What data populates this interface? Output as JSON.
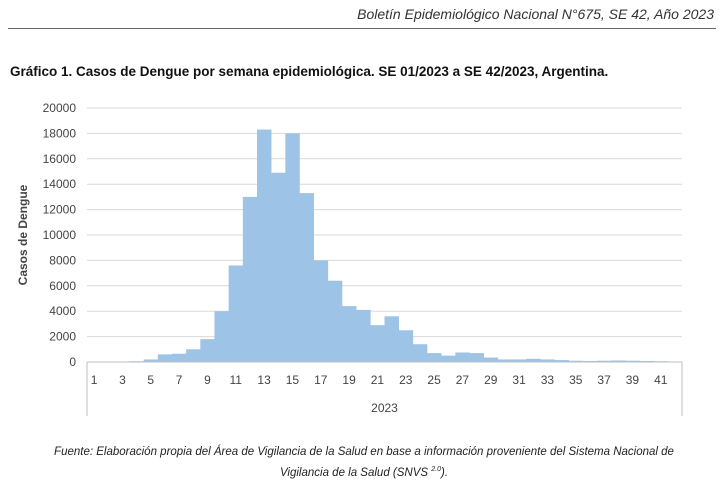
{
  "header": {
    "title": "Boletín Epidemiológico Nacional N°675, SE 42, Año 2023"
  },
  "chart_title": "Gráfico 1. Casos de Dengue por semana epidemiológica. SE 01/2023 a SE 42/2023, Argentina.",
  "footnote": {
    "line1": "Fuente: Elaboración propia del Área de Vigilancia de la Salud en base a información proveniente del Sistema Nacional de",
    "line2_pre": "Vigilancia de la Salud (SNVS ",
    "line2_sup": "2.0",
    "line2_post": ")."
  },
  "chart_data": {
    "type": "bar",
    "ylabel": "Casos de Dengue",
    "xlabel": "2023",
    "ylim": [
      0,
      20000
    ],
    "yticks": [
      0,
      2000,
      4000,
      6000,
      8000,
      10000,
      12000,
      14000,
      16000,
      18000,
      20000
    ],
    "xtick_labels": [
      "1",
      "3",
      "5",
      "7",
      "9",
      "11",
      "13",
      "15",
      "17",
      "19",
      "21",
      "23",
      "25",
      "27",
      "29",
      "31",
      "33",
      "35",
      "37",
      "39",
      "41"
    ],
    "grid": true,
    "bar_color": "#9dc3e6",
    "categories": [
      1,
      2,
      3,
      4,
      5,
      6,
      7,
      8,
      9,
      10,
      11,
      12,
      13,
      14,
      15,
      16,
      17,
      18,
      19,
      20,
      21,
      22,
      23,
      24,
      25,
      26,
      27,
      28,
      29,
      30,
      31,
      32,
      33,
      34,
      35,
      36,
      37,
      38,
      39,
      40,
      41,
      42
    ],
    "values": [
      20,
      30,
      40,
      60,
      200,
      600,
      650,
      1000,
      1800,
      4000,
      7600,
      13000,
      18300,
      14900,
      18000,
      13300,
      8000,
      6400,
      4400,
      4100,
      2900,
      3600,
      2500,
      1400,
      700,
      500,
      750,
      700,
      350,
      200,
      200,
      250,
      200,
      150,
      100,
      80,
      100,
      120,
      100,
      80,
      60,
      40
    ]
  }
}
